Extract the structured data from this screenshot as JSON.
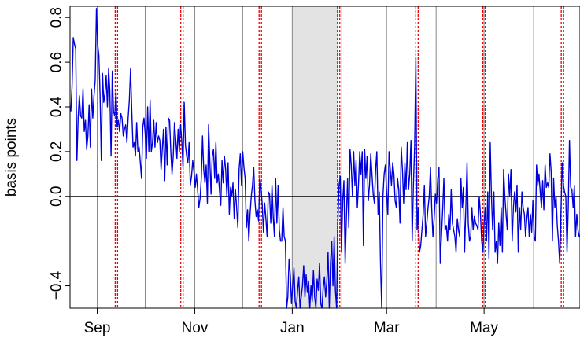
{
  "chart_data": {
    "type": "line",
    "title": "",
    "xlabel": "",
    "ylabel": "basis points",
    "ylim": [
      -0.5,
      0.85
    ],
    "yticks": [
      {
        "value": -0.4,
        "label": "−0.4"
      },
      {
        "value": 0.0,
        "label": "0.0"
      },
      {
        "value": 0.2,
        "label": "0.2"
      },
      {
        "value": 0.4,
        "label": "0.4"
      },
      {
        "value": 0.6,
        "label": "0.6"
      },
      {
        "value": 0.8,
        "label": "0.8"
      }
    ],
    "x_start": "Aug 15",
    "x_end": "Jun 30",
    "x_ticks": [
      {
        "label": "Sep",
        "date": "Sep 1"
      },
      {
        "label": "Nov",
        "date": "Nov 1"
      },
      {
        "label": "Jan",
        "date": "Jan 1"
      },
      {
        "label": "Mar",
        "date": "Mar 1"
      },
      {
        "label": "May",
        "date": "May 1"
      }
    ],
    "month_lines": [
      "Sep 1",
      "Oct 1",
      "Nov 1",
      "Dec 1",
      "Jan 1",
      "Feb 1",
      "Mar 1",
      "Apr 1",
      "May 1",
      "Jun 1"
    ],
    "event_lines": [
      "Sep 13",
      "Oct 24",
      "Dec 12",
      "Jan 30",
      "Mar 20",
      "May 1",
      "Jun 19"
    ],
    "shaded_region": {
      "from": "Jan 1",
      "to": "Jan 30"
    },
    "zero_line": 0,
    "colors": {
      "series": "#0000dd",
      "events": "#ee0000",
      "month_lines": "#888888",
      "shading": "#e3e3e3"
    },
    "series": [
      {
        "values": [
          0.38,
          0.49,
          0.71,
          0.68,
          0.66,
          0.16,
          0.35,
          0.45,
          0.36,
          0.35,
          0.48,
          0.29,
          0.34,
          0.21,
          0.27,
          0.41,
          0.22,
          0.48,
          0.35,
          0.45,
          0.52,
          0.84,
          0.68,
          0.63,
          0.45,
          0.16,
          0.55,
          0.42,
          0.46,
          0.54,
          0.4,
          0.57,
          0.47,
          0.18,
          0.56,
          0.38,
          0.36,
          0.47,
          0.31,
          0.34,
          0.29,
          0.37,
          0.35,
          0.27,
          0.3,
          0.32,
          0.24,
          0.35,
          0.43,
          0.57,
          0.38,
          0.22,
          0.24,
          0.18,
          0.33,
          0.2,
          0.22,
          0.15,
          0.08,
          0.31,
          0.35,
          0.28,
          0.17,
          0.4,
          0.2,
          0.43,
          0.2,
          0.24,
          0.34,
          0.22,
          0.33,
          0.24,
          0.27,
          0.25,
          0.12,
          0.21,
          0.3,
          0.07,
          0.31,
          0.14,
          0.35,
          0.34,
          0.2,
          0.1,
          0.18,
          0.33,
          0.26,
          0.17,
          0.3,
          0.2,
          0.32,
          0.25,
          0.13,
          0.42,
          0.23,
          0.18,
          0.15,
          0.24,
          0.05,
          0.09,
          0.16,
          0.11,
          0.04,
          0.1,
          0.03,
          -0.05,
          -0.01,
          0.08,
          0.27,
          0.12,
          0.06,
          0.14,
          -0.03,
          0.32,
          0.16,
          0.01,
          0.18,
          0.21,
          0.08,
          0.24,
          0.06,
          0.1,
          0.02,
          -0.04,
          0.16,
          0.06,
          0.18,
          0.12,
          0.0,
          0.15,
          -0.08,
          0.04,
          0.0,
          0.06,
          -0.1,
          0.03,
          -0.05,
          -0.14,
          0.12,
          0.19,
          0.05,
          0.2,
          0.13,
          0.08,
          -0.14,
          -0.06,
          -0.2,
          -0.08,
          0.0,
          0.05,
          0.13,
          -0.02,
          -0.09,
          -0.06,
          -0.11,
          0.08,
          0.04,
          -0.04,
          -0.16,
          -0.03,
          -0.1,
          -0.18,
          0.02,
          0.01,
          -0.12,
          0.05,
          -0.09,
          -0.18,
          0.08,
          -0.12,
          0.05,
          -0.15,
          -0.2,
          -0.2,
          -0.05,
          -0.18,
          -0.2,
          -0.52,
          -0.45,
          -0.28,
          -0.35,
          -0.48,
          -0.4,
          -0.32,
          -0.47,
          -0.55,
          -0.42,
          -0.36,
          -0.5,
          -0.45,
          -0.4,
          -0.31,
          -0.45,
          -0.35,
          -0.43,
          -0.38,
          -0.55,
          -0.4,
          -0.47,
          -0.33,
          -0.45,
          -0.5,
          -0.37,
          -0.42,
          -0.3,
          -0.48,
          -0.55,
          -0.41,
          -0.36,
          -0.45,
          -0.38,
          -0.25,
          -0.5,
          -0.3,
          -0.2,
          -0.4,
          -0.18,
          -0.42,
          -0.55,
          -0.12,
          0.05,
          0.09,
          -0.25,
          -0.02,
          0.07,
          -0.3,
          -0.1,
          0.08,
          -0.14,
          0.21,
          0.14,
          0.0,
          0.2,
          0.05,
          0.16,
          -0.05,
          0.06,
          0.2,
          0.1,
          0.2,
          -0.22,
          0.21,
          0.08,
          0.18,
          -0.02,
          0.05,
          0.19,
          0.1,
          0.01,
          -0.03,
          0.12,
          0.2,
          -0.08,
          0.02,
          -0.3,
          -0.55,
          0.0,
          0.1,
          0.14,
          0.02,
          -0.08,
          0.2,
          0.12,
          0.05,
          0.15,
          0.1,
          -0.02,
          -0.05,
          0.08,
          0.03,
          -0.12,
          0.22,
          0.12,
          -0.03,
          0.15,
          0.03,
          0.24,
          0.03,
          0.1,
          0.25,
          -0.2,
          0.05,
          0.22,
          0.62,
          -0.15,
          -0.05,
          -0.25,
          -0.22,
          -0.15,
          -0.08,
          0.05,
          -0.18,
          -0.12,
          -0.05,
          0.0,
          0.13,
          -0.05,
          -0.18,
          -0.1,
          0.01,
          -0.03,
          0.08,
          0.13,
          -0.3,
          -0.18,
          -0.06,
          0.08,
          -0.15,
          -0.13,
          -0.2,
          -0.08,
          -0.15,
          0.03,
          -0.12,
          -0.15,
          -0.18,
          -0.25,
          -0.1,
          -0.15,
          -0.18,
          0.08,
          -0.05,
          0.04,
          -0.25,
          -0.05,
          0.15,
          -0.12,
          -0.2,
          -0.18,
          -0.05,
          -0.15,
          -0.09,
          -0.12,
          -0.13,
          -0.15,
          0.0,
          -0.08,
          -0.2,
          -0.25,
          -0.12,
          -0.05,
          -0.2,
          0.02,
          -0.28,
          0.24,
          0.0,
          -0.15,
          0.02,
          -0.25,
          -0.2,
          -0.3,
          -0.12,
          -0.22,
          -0.05,
          -0.25,
          0.12,
          0.0,
          -0.08,
          -0.15,
          0.1,
          0.0,
          0.12,
          -0.2,
          -0.05,
          0.02,
          -0.07,
          0.05,
          -0.25,
          -0.05,
          -0.15,
          0.02,
          -0.05,
          -0.08,
          -0.18,
          -0.1,
          -0.05,
          -0.18,
          -0.08,
          -0.16,
          -0.02,
          -0.18,
          -0.2,
          0.14,
          0.05,
          0.1,
          0.02,
          -0.05,
          0.07,
          -0.06,
          0.14,
          0.04,
          0.06,
          0.04,
          0.19,
          0.11,
          -0.2,
          0.08,
          -0.05,
          0.0,
          -0.13,
          -0.2,
          -0.3,
          -0.08,
          0.15,
          0.05,
          0.02,
          0.0,
          -0.25,
          -0.05,
          0.25,
          0.04,
          0.03,
          -0.05,
          0.05,
          -0.18,
          -0.08,
          -0.15,
          -0.18
        ]
      }
    ]
  }
}
